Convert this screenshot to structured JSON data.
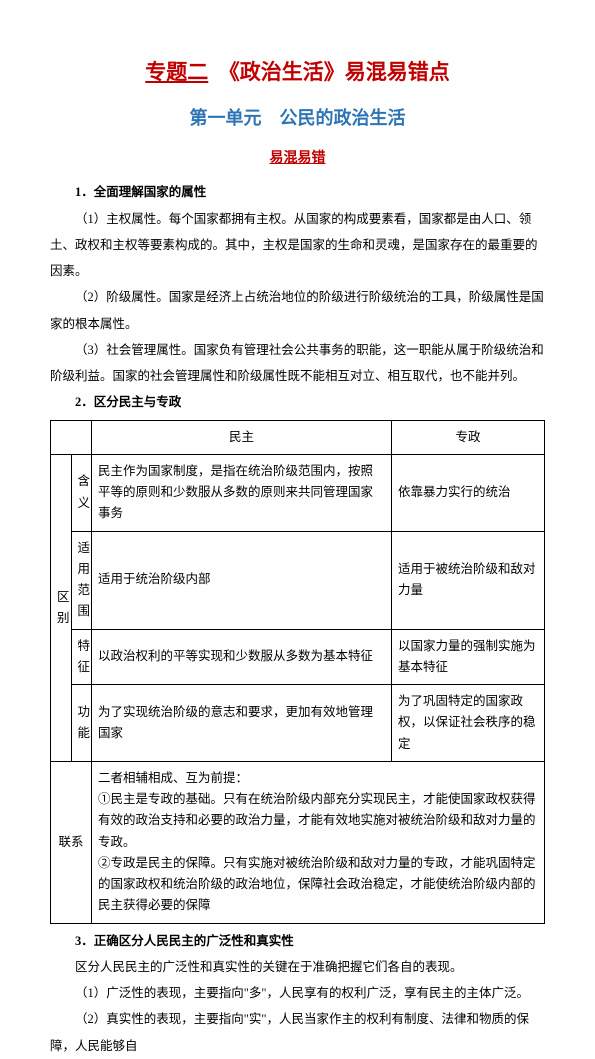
{
  "titleMain": {
    "topic": "专题二",
    "rest": "《政治生活》易混易错点"
  },
  "titleSub": "第一单元　公民的政治生活",
  "sectionLabel": "易混易错",
  "h1": "1．全面理解国家的属性",
  "p1": "（1）主权属性。每个国家都拥有主权。从国家的构成要素看，国家都是由人口、领土、政权和主权等要素构成的。其中，主权是国家的生命和灵魂，是国家存在的最重要的因素。",
  "p2": "（2）阶级属性。国家是经济上占统治地位的阶级进行阶级统治的工具，阶级属性是国家的根本属性。",
  "p3": "（3）社会管理属性。国家负有管理社会公共事务的职能，这一职能从属于阶级统治和阶级利益。国家的社会管理属性和阶级属性既不能相互对立、相互取代，也不能并列。",
  "h2": "2．区分民主与专政",
  "table": {
    "blank": "",
    "hdr_minzhu": "民主",
    "hdr_zhuanzheng": "专政",
    "side_diff": "区别",
    "row_hanyi_label": "含义",
    "row_hanyi_mz": "民主作为国家制度，是指在统治阶级范围内，按照平等的原则和少数服从多数的原则来共同管理国家事务",
    "row_hanyi_zz": "依靠暴力实行的统治",
    "row_fanwei_label": "适用范围",
    "row_fanwei_mz": "适用于统治阶级内部",
    "row_fanwei_zz": "适用于被统治阶级和敌对力量",
    "row_tezheng_label": "特征",
    "row_tezheng_mz": "以政治权利的平等实现和少数服从多数为基本特征",
    "row_tezheng_zz": "以国家力量的强制实施为基本特征",
    "row_gongneng_label": "功能",
    "row_gongneng_mz": "为了实现统治阶级的意志和要求，更加有效地管理国家",
    "row_gongneng_zz": "为了巩固特定的国家政权，以保证社会秩序的稳定",
    "row_lianxi_label": "联系",
    "row_lianxi_txt": "二者相辅相成、互为前提：\n①民主是专政的基础。只有在统治阶级内部充分实现民主，才能使国家政权获得有效的政治支持和必要的政治力量，才能有效地实施对被统治阶级和敌对力量的专政。\n②专政是民主的保障。只有实施对被统治阶级和敌对力量的专政，才能巩固特定的国家政权和统治阶级的政治地位，保障社会政治稳定，才能使统治阶级内部的民主获得必要的保障"
  },
  "h3": "3．正确区分人民民主的广泛性和真实性",
  "p4": "区分人民民主的广泛性和真实性的关键在于准确把握它们各自的表现。",
  "p5": "（1）广泛性的表现，主要指向\"多\"，人民享有的权利广泛，享有民主的主体广泛。",
  "p6": "（2）真实性的表现，主要指向\"实\"，人民当家作主的权利有制度、法律和物质的保障，人民能够自"
}
